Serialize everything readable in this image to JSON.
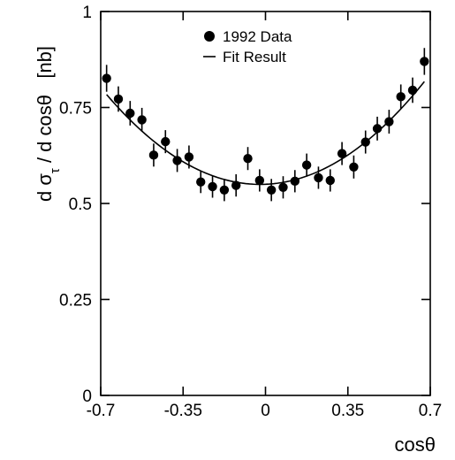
{
  "chart_data": {
    "type": "scatter",
    "title": "",
    "xlabel": "cosθ",
    "ylabel": "d σ",
    "ylabel_sub": "τ",
    "ylabel_rest": " / d cosθ   [nb]",
    "xlim": [
      -0.7,
      0.7
    ],
    "ylim": [
      0,
      1
    ],
    "x_ticks": [
      -0.7,
      -0.35,
      0,
      0.35,
      0.7
    ],
    "x_tick_labels": [
      "-0.7",
      "-0.35",
      "0",
      "0.35",
      "0.7"
    ],
    "y_ticks": [
      0,
      0.25,
      0.5,
      0.75,
      1
    ],
    "y_tick_labels": [
      "0",
      "0.25",
      "0.5",
      "0.75",
      "1"
    ],
    "grid": false,
    "legend_position": "top-center",
    "series": [
      {
        "name": "1992 Data",
        "kind": "points-with-errorbars",
        "x": [
          -0.675,
          -0.625,
          -0.575,
          -0.525,
          -0.475,
          -0.425,
          -0.375,
          -0.325,
          -0.275,
          -0.225,
          -0.175,
          -0.125,
          -0.075,
          -0.025,
          0.025,
          0.075,
          0.125,
          0.175,
          0.225,
          0.275,
          0.325,
          0.375,
          0.425,
          0.475,
          0.525,
          0.575,
          0.625,
          0.675
        ],
        "y": [
          0.826,
          0.772,
          0.735,
          0.718,
          0.626,
          0.661,
          0.612,
          0.621,
          0.556,
          0.544,
          0.535,
          0.547,
          0.617,
          0.56,
          0.535,
          0.542,
          0.558,
          0.6,
          0.567,
          0.56,
          0.63,
          0.595,
          0.66,
          0.695,
          0.713,
          0.778,
          0.795,
          0.87
        ],
        "err": [
          0.035,
          0.033,
          0.032,
          0.031,
          0.03,
          0.03,
          0.03,
          0.03,
          0.029,
          0.029,
          0.029,
          0.029,
          0.03,
          0.029,
          0.029,
          0.029,
          0.029,
          0.03,
          0.029,
          0.029,
          0.03,
          0.03,
          0.03,
          0.031,
          0.031,
          0.032,
          0.033,
          0.035
        ]
      },
      {
        "name": "Fit Result",
        "kind": "curve",
        "model": "a*(1+x^2)+b*x",
        "params": {
          "a": 0.55,
          "b": 0.025
        }
      }
    ],
    "colors": {
      "axis": "#000000",
      "marker": "#000000",
      "fit": "#000000"
    }
  }
}
